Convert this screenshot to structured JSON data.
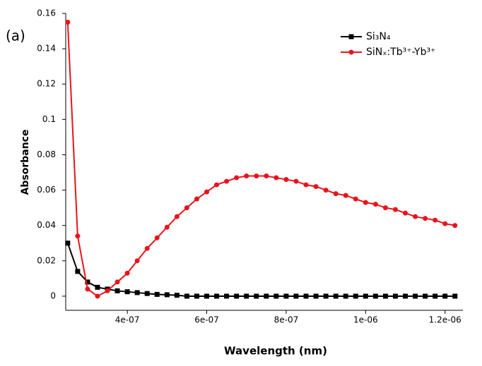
{
  "chart_data": {
    "type": "line",
    "annotation": "(a)",
    "x_label": "Wavelength (nm)",
    "y_label": "Absorbance",
    "x": [
      2.5e-07,
      2.75e-07,
      3e-07,
      3.25e-07,
      3.5e-07,
      3.75e-07,
      4e-07,
      4.25e-07,
      4.5e-07,
      4.75e-07,
      5e-07,
      5.25e-07,
      5.5e-07,
      5.75e-07,
      6e-07,
      6.25e-07,
      6.5e-07,
      6.75e-07,
      7e-07,
      7.25e-07,
      7.5e-07,
      7.75e-07,
      8e-07,
      8.25e-07,
      8.5e-07,
      8.75e-07,
      9e-07,
      9.25e-07,
      9.5e-07,
      9.75e-07,
      1e-06,
      1.025e-06,
      1.05e-06,
      1.075e-06,
      1.1e-06,
      1.125e-06,
      1.15e-06,
      1.175e-06,
      1.2e-06,
      1.225e-06
    ],
    "series": [
      {
        "name": "Si₃N₄",
        "color": "#000000",
        "marker": "square",
        "values": [
          0.03,
          0.014,
          0.008,
          0.005,
          0.004,
          0.003,
          0.0025,
          0.002,
          0.0015,
          0.001,
          0.0008,
          0.0005,
          0,
          0,
          0,
          0,
          0,
          0,
          0,
          0,
          0,
          0,
          0,
          0,
          0,
          0,
          0,
          0,
          0,
          0,
          0,
          0,
          0,
          0,
          0,
          0,
          0,
          0,
          0,
          0
        ]
      },
      {
        "name": "SiNₓ:Tb³⁺-Yb³⁺",
        "color": "#e8141b",
        "marker": "circle",
        "values": [
          0.155,
          0.034,
          0.004,
          0.0,
          0.003,
          0.008,
          0.013,
          0.02,
          0.027,
          0.033,
          0.039,
          0.045,
          0.05,
          0.055,
          0.059,
          0.063,
          0.065,
          0.067,
          0.068,
          0.068,
          0.068,
          0.067,
          0.066,
          0.065,
          0.063,
          0.062,
          0.06,
          0.058,
          0.057,
          0.055,
          0.053,
          0.052,
          0.05,
          0.049,
          0.047,
          0.045,
          0.044,
          0.043,
          0.041,
          0.04
        ]
      }
    ],
    "xlim": [
      2.45e-07,
      1.245e-06
    ],
    "ylim": [
      -0.008,
      0.16
    ],
    "xticks": [
      {
        "value": 4e-07,
        "label": "4e-07"
      },
      {
        "value": 6e-07,
        "label": "6e-07"
      },
      {
        "value": 8e-07,
        "label": "8e-07"
      },
      {
        "value": 1e-06,
        "label": "1e-06"
      },
      {
        "value": 1.2e-06,
        "label": "1.2e-06"
      }
    ],
    "yticks": [
      0,
      0.02,
      0.04,
      0.06,
      0.08,
      0.1,
      0.12,
      0.14,
      0.16
    ],
    "grid": false,
    "legend": "upper right"
  }
}
